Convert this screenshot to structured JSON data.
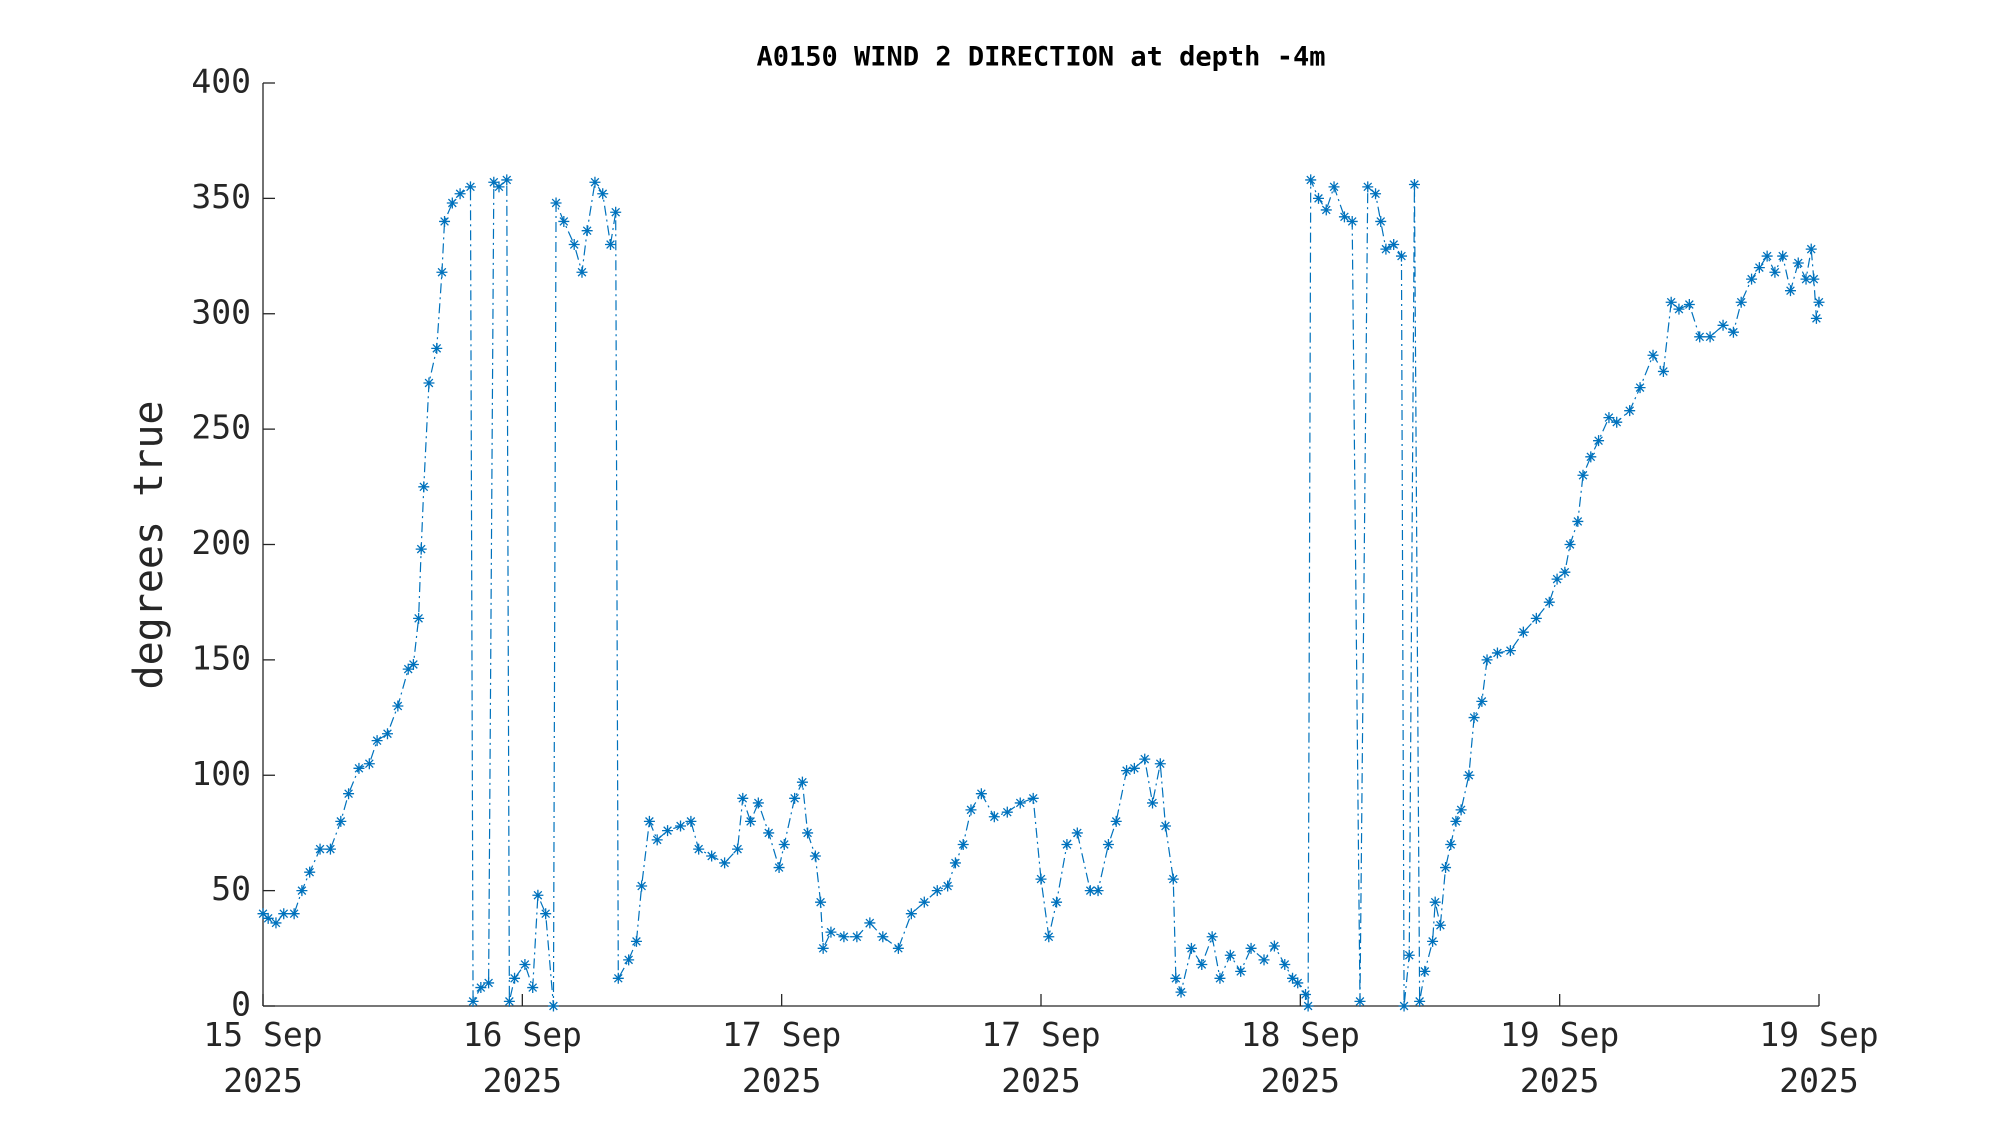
{
  "chart_data": {
    "type": "line",
    "title": "A0150 WIND 2 DIRECTION at depth -4m",
    "y_label": "degrees true",
    "x": [
      0,
      0.02,
      0.05,
      0.08,
      0.12,
      0.15,
      0.18,
      0.22,
      0.26,
      0.3,
      0.33,
      0.37,
      0.41,
      0.44,
      0.48,
      0.52,
      0.56,
      0.58,
      0.6,
      0.61,
      0.62,
      0.64,
      0.67,
      0.69,
      0.7,
      0.73,
      0.76,
      0.8,
      0.81,
      0.84,
      0.87,
      0.89,
      0.91,
      0.94,
      0.95,
      0.97,
      1.01,
      1.04,
      1.06,
      1.09,
      1.12,
      1.13,
      1.16,
      1.2,
      1.23,
      1.25,
      1.28,
      1.31,
      1.34,
      1.36,
      1.37,
      1.41,
      1.44,
      1.46,
      1.49,
      1.52,
      1.56,
      1.61,
      1.65,
      1.68,
      1.73,
      1.78,
      1.83,
      1.85,
      1.88,
      1.91,
      1.95,
      1.99,
      2.01,
      2.05,
      2.08,
      2.1,
      2.13,
      2.15,
      2.16,
      2.19,
      2.24,
      2.29,
      2.34,
      2.39,
      2.45,
      2.5,
      2.55,
      2.6,
      2.64,
      2.67,
      2.7,
      2.73,
      2.77,
      2.82,
      2.87,
      2.92,
      2.97,
      3.0,
      3.03,
      3.06,
      3.1,
      3.14,
      3.19,
      3.22,
      3.26,
      3.29,
      3.33,
      3.36,
      3.4,
      3.43,
      3.46,
      3.48,
      3.51,
      3.52,
      3.54,
      3.58,
      3.62,
      3.66,
      3.69,
      3.73,
      3.77,
      3.81,
      3.86,
      3.9,
      3.94,
      3.97,
      3.99,
      4.02,
      4.03,
      4.04,
      4.07,
      4.1,
      4.13,
      4.17,
      4.2,
      4.23,
      4.26,
      4.29,
      4.31,
      4.33,
      4.36,
      4.39,
      4.4,
      4.42,
      4.44,
      4.46,
      4.48,
      4.51,
      4.52,
      4.54,
      4.56,
      4.58,
      4.6,
      4.62,
      4.65,
      4.67,
      4.7,
      4.72,
      4.76,
      4.81,
      4.86,
      4.91,
      4.96,
      4.99,
      5.02,
      5.04,
      5.07,
      5.09,
      5.12,
      5.15,
      5.19,
      5.22,
      5.27,
      5.31,
      5.36,
      5.4,
      5.43,
      5.46,
      5.5,
      5.54,
      5.58,
      5.63,
      5.67,
      5.7,
      5.74,
      5.77,
      5.8,
      5.83,
      5.86,
      5.89,
      5.92,
      5.95,
      5.97,
      5.98,
      5.99,
      6.0
    ],
    "series": [
      {
        "name": "A0150 WIND 2 DIRECTION",
        "color": "#0072bd",
        "values": [
          40,
          38,
          36,
          40,
          40,
          50,
          58,
          68,
          68,
          80,
          92,
          103,
          105,
          115,
          118,
          130,
          146,
          148,
          168,
          198,
          225,
          270,
          285,
          318,
          340,
          348,
          352,
          355,
          2,
          8,
          10,
          357,
          355,
          358,
          2,
          12,
          18,
          8,
          48,
          40,
          0,
          348,
          340,
          330,
          318,
          336,
          357,
          352,
          330,
          344,
          12,
          20,
          28,
          52,
          80,
          72,
          76,
          78,
          80,
          68,
          65,
          62,
          68,
          90,
          80,
          88,
          75,
          60,
          70,
          90,
          97,
          75,
          65,
          45,
          25,
          32,
          30,
          30,
          36,
          30,
          25,
          40,
          45,
          50,
          52,
          62,
          70,
          85,
          92,
          82,
          84,
          88,
          90,
          55,
          30,
          45,
          70,
          75,
          50,
          50,
          70,
          80,
          102,
          103,
          107,
          88,
          105,
          78,
          55,
          12,
          6,
          25,
          18,
          30,
          12,
          22,
          15,
          25,
          20,
          26,
          18,
          12,
          10,
          5,
          0,
          358,
          350,
          345,
          355,
          342,
          340,
          2,
          355,
          352,
          340,
          328,
          330,
          325,
          0,
          22,
          356,
          2,
          15,
          28,
          45,
          35,
          60,
          70,
          80,
          85,
          100,
          125,
          132,
          150,
          153,
          154,
          162,
          168,
          175,
          185,
          188,
          200,
          210,
          230,
          238,
          245,
          255,
          253,
          258,
          268,
          282,
          275,
          305,
          302,
          304,
          290,
          290,
          295,
          292,
          305,
          315,
          320,
          325,
          318,
          325,
          310,
          322,
          315,
          328,
          315,
          298,
          305
        ]
      }
    ],
    "xlim": [
      0,
      6
    ],
    "xticks": [
      {
        "value": 0,
        "label": "15 Sep 2025"
      },
      {
        "value": 1,
        "label": "16 Sep 2025"
      },
      {
        "value": 2,
        "label": "17 Sep 2025"
      },
      {
        "value": 3,
        "label": "17 Sep 2025"
      },
      {
        "value": 4,
        "label": "18 Sep 2025"
      },
      {
        "value": 5,
        "label": "19 Sep 2025"
      },
      {
        "value": 6,
        "label": "19 Sep 2025"
      }
    ],
    "ylim": [
      0,
      400
    ],
    "yticks": [
      0,
      50,
      100,
      150,
      200,
      250,
      300,
      350,
      400
    ],
    "grid": false,
    "line_style": "dashdot",
    "marker": "asterisk"
  }
}
